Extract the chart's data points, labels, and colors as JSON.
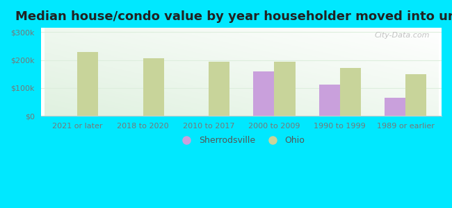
{
  "title": "Median house/condo value by year householder moved into unit",
  "categories": [
    "2021 or later",
    "2018 to 2020",
    "2010 to 2017",
    "2000 to 2009",
    "1990 to 1999",
    "1989 or earlier"
  ],
  "sherrodsville": [
    null,
    null,
    null,
    160000,
    113000,
    65000
  ],
  "ohio": [
    228000,
    207000,
    195000,
    193000,
    172000,
    150000
  ],
  "sherrodsville_color": "#c9a0dc",
  "ohio_color": "#c8d49a",
  "background_outer": "#00e8ff",
  "yticks": [
    0,
    100000,
    200000,
    300000
  ],
  "ylim": [
    0,
    315000
  ],
  "title_fontsize": 13,
  "legend_labels": [
    "Sherrodsville",
    "Ohio"
  ],
  "watermark": "City-Data.com",
  "bar_width": 0.32,
  "tick_fontsize": 8,
  "tick_color": "#777777",
  "grid_color": "#ddeedd",
  "spine_color": "#cccccc"
}
